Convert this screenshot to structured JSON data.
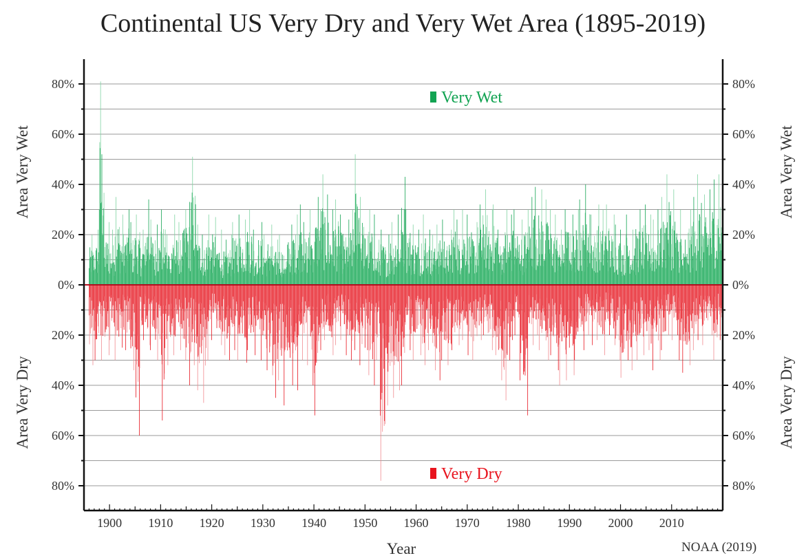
{
  "chart_data": {
    "type": "bar",
    "title": "Continental US Very Dry and Very Wet Area (1895-2019)",
    "xlabel": "Year",
    "ylabel_left_top": "Area Very Wet",
    "ylabel_left_bottom": "Area Very Dry",
    "ylabel_right_top": "Area Very Wet",
    "ylabel_right_bottom": "Area Very Dry",
    "source": "NOAA (2019)",
    "x_ticks": [
      "1900",
      "1910",
      "1920",
      "1930",
      "1940",
      "1950",
      "1960",
      "1970",
      "1980",
      "1990",
      "2000",
      "2010"
    ],
    "y_ticks_wet": [
      "80%",
      "60%",
      "40%",
      "20%",
      "0%"
    ],
    "y_ticks_dry": [
      "20%",
      "40%",
      "60%",
      "80%"
    ],
    "xlim": [
      1895,
      2020
    ],
    "ylim": [
      -80,
      80
    ],
    "grid": true,
    "legend": [
      "Very Wet",
      "Very Dry"
    ],
    "legend_placement": "inside-top and inside-bottom, centered",
    "series": [
      {
        "name": "Very Wet",
        "color": "#12a352",
        "unit": "percent of area, monthly, sampled peaks",
        "points": [
          [
            1896,
            20
          ],
          [
            1897,
            22
          ],
          [
            1898,
            81
          ],
          [
            1899,
            25
          ],
          [
            1900,
            22
          ],
          [
            1901,
            35
          ],
          [
            1902,
            28
          ],
          [
            1903,
            30
          ],
          [
            1904,
            25
          ],
          [
            1905,
            28
          ],
          [
            1906,
            22
          ],
          [
            1907,
            34
          ],
          [
            1908,
            26
          ],
          [
            1909,
            24
          ],
          [
            1910,
            30
          ],
          [
            1911,
            20
          ],
          [
            1912,
            28
          ],
          [
            1913,
            25
          ],
          [
            1914,
            30
          ],
          [
            1915,
            33
          ],
          [
            1916,
            51
          ],
          [
            1917,
            24
          ],
          [
            1918,
            20
          ],
          [
            1919,
            28
          ],
          [
            1920,
            27
          ],
          [
            1921,
            22
          ],
          [
            1922,
            18
          ],
          [
            1923,
            20
          ],
          [
            1924,
            25
          ],
          [
            1925,
            28
          ],
          [
            1926,
            26
          ],
          [
            1927,
            30
          ],
          [
            1928,
            22
          ],
          [
            1929,
            25
          ],
          [
            1930,
            20
          ],
          [
            1931,
            24
          ],
          [
            1932,
            18
          ],
          [
            1933,
            20
          ],
          [
            1934,
            16
          ],
          [
            1935,
            24
          ],
          [
            1936,
            28
          ],
          [
            1937,
            32
          ],
          [
            1938,
            25
          ],
          [
            1939,
            30
          ],
          [
            1940,
            35
          ],
          [
            1941,
            44
          ],
          [
            1942,
            36
          ],
          [
            1943,
            30
          ],
          [
            1944,
            34
          ],
          [
            1945,
            28
          ],
          [
            1946,
            26
          ],
          [
            1947,
            30
          ],
          [
            1948,
            52
          ],
          [
            1949,
            35
          ],
          [
            1950,
            30
          ],
          [
            1951,
            28
          ],
          [
            1952,
            18
          ],
          [
            1953,
            22
          ],
          [
            1954,
            20
          ],
          [
            1955,
            25
          ],
          [
            1956,
            28
          ],
          [
            1957,
            43
          ],
          [
            1958,
            30
          ],
          [
            1959,
            24
          ],
          [
            1960,
            22
          ],
          [
            1961,
            28
          ],
          [
            1962,
            22
          ],
          [
            1963,
            20
          ],
          [
            1964,
            24
          ],
          [
            1965,
            26
          ],
          [
            1966,
            22
          ],
          [
            1967,
            30
          ],
          [
            1968,
            26
          ],
          [
            1969,
            30
          ],
          [
            1970,
            28
          ],
          [
            1971,
            25
          ],
          [
            1972,
            32
          ],
          [
            1973,
            38
          ],
          [
            1974,
            30
          ],
          [
            1975,
            32
          ],
          [
            1976,
            22
          ],
          [
            1977,
            30
          ],
          [
            1978,
            28
          ],
          [
            1979,
            30
          ],
          [
            1980,
            26
          ],
          [
            1981,
            30
          ],
          [
            1982,
            35
          ],
          [
            1983,
            39
          ],
          [
            1984,
            38
          ],
          [
            1985,
            34
          ],
          [
            1986,
            30
          ],
          [
            1987,
            28
          ],
          [
            1988,
            22
          ],
          [
            1989,
            30
          ],
          [
            1990,
            28
          ],
          [
            1991,
            30
          ],
          [
            1992,
            34
          ],
          [
            1993,
            40
          ],
          [
            1994,
            28
          ],
          [
            1995,
            32
          ],
          [
            1996,
            30
          ],
          [
            1997,
            32
          ],
          [
            1998,
            28
          ],
          [
            1999,
            24
          ],
          [
            2000,
            22
          ],
          [
            2001,
            28
          ],
          [
            2002,
            22
          ],
          [
            2003,
            30
          ],
          [
            2004,
            32
          ],
          [
            2005,
            28
          ],
          [
            2006,
            26
          ],
          [
            2007,
            30
          ],
          [
            2008,
            35
          ],
          [
            2009,
            44
          ],
          [
            2010,
            38
          ],
          [
            2011,
            30
          ],
          [
            2012,
            18
          ],
          [
            2013,
            30
          ],
          [
            2014,
            35
          ],
          [
            2015,
            44
          ],
          [
            2016,
            36
          ],
          [
            2017,
            38
          ],
          [
            2018,
            42
          ],
          [
            2019,
            44
          ]
        ]
      },
      {
        "name": "Very Dry",
        "color": "#e8141e",
        "unit": "percent of area, monthly, sampled peaks",
        "points": [
          [
            1896,
            32
          ],
          [
            1897,
            30
          ],
          [
            1898,
            30
          ],
          [
            1899,
            28
          ],
          [
            1900,
            22
          ],
          [
            1901,
            30
          ],
          [
            1902,
            25
          ],
          [
            1903,
            26
          ],
          [
            1904,
            34
          ],
          [
            1905,
            60
          ],
          [
            1906,
            22
          ],
          [
            1907,
            24
          ],
          [
            1908,
            26
          ],
          [
            1909,
            30
          ],
          [
            1910,
            54
          ],
          [
            1911,
            32
          ],
          [
            1912,
            28
          ],
          [
            1913,
            26
          ],
          [
            1914,
            30
          ],
          [
            1915,
            40
          ],
          [
            1916,
            32
          ],
          [
            1917,
            42
          ],
          [
            1918,
            47
          ],
          [
            1919,
            30
          ],
          [
            1920,
            22
          ],
          [
            1921,
            24
          ],
          [
            1922,
            28
          ],
          [
            1923,
            30
          ],
          [
            1924,
            26
          ],
          [
            1925,
            30
          ],
          [
            1926,
            31
          ],
          [
            1927,
            26
          ],
          [
            1928,
            28
          ],
          [
            1929,
            30
          ],
          [
            1930,
            34
          ],
          [
            1931,
            36
          ],
          [
            1932,
            45
          ],
          [
            1933,
            38
          ],
          [
            1934,
            48
          ],
          [
            1935,
            40
          ],
          [
            1936,
            42
          ],
          [
            1937,
            30
          ],
          [
            1938,
            32
          ],
          [
            1939,
            40
          ],
          [
            1940,
            52
          ],
          [
            1941,
            26
          ],
          [
            1942,
            22
          ],
          [
            1943,
            28
          ],
          [
            1944,
            24
          ],
          [
            1945,
            22
          ],
          [
            1946,
            28
          ],
          [
            1947,
            30
          ],
          [
            1948,
            26
          ],
          [
            1949,
            32
          ],
          [
            1950,
            36
          ],
          [
            1951,
            40
          ],
          [
            1952,
            30
          ],
          [
            1953,
            78
          ],
          [
            1954,
            48
          ],
          [
            1955,
            45
          ],
          [
            1956,
            42
          ],
          [
            1957,
            40
          ],
          [
            1958,
            26
          ],
          [
            1959,
            30
          ],
          [
            1960,
            28
          ],
          [
            1961,
            32
          ],
          [
            1962,
            26
          ],
          [
            1963,
            34
          ],
          [
            1964,
            38
          ],
          [
            1965,
            30
          ],
          [
            1966,
            32
          ],
          [
            1967,
            26
          ],
          [
            1968,
            24
          ],
          [
            1969,
            22
          ],
          [
            1970,
            28
          ],
          [
            1971,
            30
          ],
          [
            1972,
            22
          ],
          [
            1973,
            20
          ],
          [
            1974,
            26
          ],
          [
            1975,
            28
          ],
          [
            1976,
            38
          ],
          [
            1977,
            46
          ],
          [
            1978,
            30
          ],
          [
            1979,
            20
          ],
          [
            1980,
            38
          ],
          [
            1981,
            52
          ],
          [
            1982,
            24
          ],
          [
            1983,
            20
          ],
          [
            1984,
            26
          ],
          [
            1985,
            30
          ],
          [
            1986,
            28
          ],
          [
            1987,
            34
          ],
          [
            1988,
            40
          ],
          [
            1989,
            38
          ],
          [
            1990,
            36
          ],
          [
            1991,
            30
          ],
          [
            1992,
            26
          ],
          [
            1993,
            20
          ],
          [
            1994,
            24
          ],
          [
            1995,
            22
          ],
          [
            1996,
            28
          ],
          [
            1997,
            20
          ],
          [
            1998,
            24
          ],
          [
            1999,
            30
          ],
          [
            2000,
            37
          ],
          [
            2001,
            30
          ],
          [
            2002,
            34
          ],
          [
            2003,
            30
          ],
          [
            2004,
            28
          ],
          [
            2005,
            26
          ],
          [
            2006,
            34
          ],
          [
            2007,
            30
          ],
          [
            2008,
            26
          ],
          [
            2009,
            20
          ],
          [
            2010,
            22
          ],
          [
            2011,
            30
          ],
          [
            2012,
            35
          ],
          [
            2013,
            32
          ],
          [
            2014,
            26
          ],
          [
            2015,
            22
          ],
          [
            2016,
            24
          ],
          [
            2017,
            20
          ],
          [
            2018,
            30
          ],
          [
            2019,
            22
          ]
        ]
      }
    ]
  }
}
